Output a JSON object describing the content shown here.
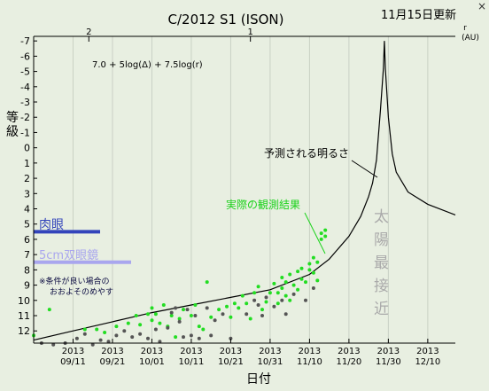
{
  "window": {
    "update_label": "11月15日更新",
    "close_glyph": "×",
    "close_icon": "close-icon"
  },
  "chart_data": {
    "type": "scatter",
    "title": "C/2012 S1 (ISON)",
    "ylabel": "等級",
    "xlabel": "日付",
    "formula": "7.0 + 5log(Δ) + 7.5log(r)",
    "x_ticks": [
      {
        "date": "2013-09-11",
        "year": "2013",
        "label": "09/11"
      },
      {
        "date": "2013-09-21",
        "year": "2013",
        "label": "09/21"
      },
      {
        "date": "2013-10-01",
        "year": "2013",
        "label": "10/01"
      },
      {
        "date": "2013-10-11",
        "year": "2013",
        "label": "10/11"
      },
      {
        "date": "2013-10-21",
        "year": "2013",
        "label": "10/21"
      },
      {
        "date": "2013-10-31",
        "year": "2013",
        "label": "10/31"
      },
      {
        "date": "2013-11-10",
        "year": "2013",
        "label": "11/10"
      },
      {
        "date": "2013-11-20",
        "year": "2013",
        "label": "11/20"
      },
      {
        "date": "2013-11-30",
        "year": "2013",
        "label": "11/30"
      },
      {
        "date": "2013-12-10",
        "year": "2013",
        "label": "12/10"
      }
    ],
    "xlim": [
      "2013-09-01",
      "2013-12-17"
    ],
    "ylim": [
      12.8,
      -7.3
    ],
    "y_ticks": [
      12,
      11,
      10,
      9,
      8,
      7,
      6,
      5,
      4,
      3,
      2,
      1,
      0,
      -1,
      -2,
      -3,
      -4,
      -5,
      -6,
      -7
    ],
    "y_tick_labels": [
      "12",
      "11",
      "10",
      "9",
      "8",
      "7",
      "6",
      "5",
      "4",
      "3",
      "2",
      "1",
      "0",
      "-1",
      "-2",
      "-3",
      "-4",
      "-5",
      "-6",
      "-7"
    ],
    "top_axis": {
      "label": "r",
      "unit": "(AU)",
      "ticks": [
        {
          "date": "2013-09-15",
          "label": "2"
        },
        {
          "date": "2013-10-26",
          "label": "1"
        }
      ]
    },
    "annotations": {
      "predicted_label": "予測される明るさ",
      "observed_label": "実際の観測結果",
      "perihelion_label": [
        "太",
        "陽",
        "最",
        "接",
        "近"
      ],
      "naked_eye_label": "肉眼",
      "naked_eye_mag": 5.5,
      "binocular_label": "5cm双眼鏡",
      "binocular_mag": 7.5,
      "note_lines": [
        "※条件が良い場合の",
        "おおよそのめやす"
      ]
    },
    "colors": {
      "background": "#e8efe1",
      "predicted": "#000000",
      "observed_green": "#22dd22",
      "observed_gray": "#555555",
      "naked_eye": "#3344bb",
      "binocular": "#a9a6ee",
      "perihelion_text": "#aaaaaa"
    },
    "predicted_curve": [
      [
        "2013-09-01",
        12.6
      ],
      [
        "2013-09-11",
        12.0
      ],
      [
        "2013-09-21",
        11.4
      ],
      [
        "2013-10-01",
        10.8
      ],
      [
        "2013-10-11",
        10.3
      ],
      [
        "2013-10-21",
        9.8
      ],
      [
        "2013-10-31",
        9.3
      ],
      [
        "2013-11-10",
        8.3
      ],
      [
        "2013-11-15",
        7.3
      ],
      [
        "2013-11-20",
        5.8
      ],
      [
        "2013-11-23",
        4.5
      ],
      [
        "2013-11-25",
        3.2
      ],
      [
        "2013-11-26",
        2.3
      ],
      [
        "2013-11-27",
        0.8
      ],
      [
        "2013-11-28",
        -2.5
      ],
      [
        "2013-11-28T18:00",
        -5.2
      ],
      [
        "2013-11-29",
        -7.0
      ],
      [
        "2013-11-29T06:00",
        -5.2
      ],
      [
        "2013-11-30",
        -2.0
      ],
      [
        "2013-12-01",
        0.4
      ],
      [
        "2013-12-02",
        1.6
      ],
      [
        "2013-12-05",
        2.9
      ],
      [
        "2013-12-10",
        3.7
      ],
      [
        "2013-12-17",
        4.4
      ]
    ],
    "series": [
      {
        "name": "green",
        "color": "#22dd22",
        "points": [
          [
            "2013-09-01",
            12.3
          ],
          [
            "2013-09-05",
            10.6
          ],
          [
            "2013-09-14",
            11.9
          ],
          [
            "2013-09-17",
            11.9
          ],
          [
            "2013-09-19",
            12.1
          ],
          [
            "2013-09-22",
            11.7
          ],
          [
            "2013-09-25",
            11.5
          ],
          [
            "2013-09-27",
            11.0
          ],
          [
            "2013-09-28",
            11.6
          ],
          [
            "2013-09-30",
            10.9
          ],
          [
            "2013-10-01",
            10.5
          ],
          [
            "2013-10-01",
            11.3
          ],
          [
            "2013-10-02",
            10.9
          ],
          [
            "2013-10-03",
            11.5
          ],
          [
            "2013-10-04",
            10.3
          ],
          [
            "2013-10-05",
            11.7
          ],
          [
            "2013-10-06",
            11.0
          ],
          [
            "2013-10-07",
            12.4
          ],
          [
            "2013-10-08",
            11.2
          ],
          [
            "2013-10-09",
            10.6
          ],
          [
            "2013-10-11",
            11.0
          ],
          [
            "2013-10-12",
            10.3
          ],
          [
            "2013-10-13",
            11.7
          ],
          [
            "2013-10-14",
            11.9
          ],
          [
            "2013-10-15",
            8.8
          ],
          [
            "2013-10-16",
            11.1
          ],
          [
            "2013-10-18",
            10.6
          ],
          [
            "2013-10-20",
            10.4
          ],
          [
            "2013-10-21",
            11.1
          ],
          [
            "2013-10-22",
            10.2
          ],
          [
            "2013-10-23",
            10.5
          ],
          [
            "2013-10-24",
            9.7
          ],
          [
            "2013-10-25",
            10.2
          ],
          [
            "2013-10-26",
            11.2
          ],
          [
            "2013-10-27",
            9.5
          ],
          [
            "2013-10-28",
            9.1
          ],
          [
            "2013-10-29",
            10.6
          ],
          [
            "2013-10-30",
            10.1
          ],
          [
            "2013-10-31",
            9.5
          ],
          [
            "2013-11-01",
            8.9
          ],
          [
            "2013-11-02",
            9.5
          ],
          [
            "2013-11-02",
            10.2
          ],
          [
            "2013-11-03",
            8.5
          ],
          [
            "2013-11-03",
            9.2
          ],
          [
            "2013-11-04",
            9.7
          ],
          [
            "2013-11-04",
            8.8
          ],
          [
            "2013-11-05",
            10.0
          ],
          [
            "2013-11-05",
            8.3
          ],
          [
            "2013-11-06",
            9.0
          ],
          [
            "2013-11-07",
            8.1
          ],
          [
            "2013-11-07",
            9.3
          ],
          [
            "2013-11-08",
            8.6
          ],
          [
            "2013-11-08",
            7.9
          ],
          [
            "2013-11-09",
            8.8
          ],
          [
            "2013-11-10",
            8.0
          ],
          [
            "2013-11-10",
            7.6
          ],
          [
            "2013-11-11",
            8.2
          ],
          [
            "2013-11-11",
            7.2
          ],
          [
            "2013-11-12",
            8.7
          ],
          [
            "2013-11-12",
            7.5
          ],
          [
            "2013-11-13",
            6.0
          ],
          [
            "2013-11-13",
            5.6
          ],
          [
            "2013-11-14",
            5.4
          ],
          [
            "2013-11-14",
            5.8
          ]
        ]
      },
      {
        "name": "gray",
        "color": "#555555",
        "points": [
          [
            "2013-09-03",
            12.8
          ],
          [
            "2013-09-06",
            12.9
          ],
          [
            "2013-09-09",
            12.8
          ],
          [
            "2013-09-12",
            12.5
          ],
          [
            "2013-09-14",
            12.2
          ],
          [
            "2013-09-16",
            12.9
          ],
          [
            "2013-09-18",
            12.6
          ],
          [
            "2013-09-20",
            12.7
          ],
          [
            "2013-09-22",
            12.3
          ],
          [
            "2013-09-24",
            12.0
          ],
          [
            "2013-09-26",
            12.4
          ],
          [
            "2013-09-28",
            12.2
          ],
          [
            "2013-09-30",
            12.5
          ],
          [
            "2013-10-02",
            11.9
          ],
          [
            "2013-10-03",
            12.7
          ],
          [
            "2013-10-05",
            11.8
          ],
          [
            "2013-10-06",
            10.8
          ],
          [
            "2013-10-07",
            10.5
          ],
          [
            "2013-10-08",
            11.4
          ],
          [
            "2013-10-09",
            12.4
          ],
          [
            "2013-10-10",
            10.6
          ],
          [
            "2013-10-11",
            12.3
          ],
          [
            "2013-10-12",
            11.0
          ],
          [
            "2013-10-13",
            12.5
          ],
          [
            "2013-10-15",
            10.5
          ],
          [
            "2013-10-16",
            12.3
          ],
          [
            "2013-10-17",
            11.3
          ],
          [
            "2013-10-19",
            10.9
          ],
          [
            "2013-10-21",
            12.5
          ],
          [
            "2013-10-25",
            10.9
          ],
          [
            "2013-10-27",
            10.0
          ],
          [
            "2013-10-28",
            10.3
          ],
          [
            "2013-10-29",
            11.0
          ],
          [
            "2013-10-30",
            9.8
          ],
          [
            "2013-11-01",
            10.4
          ],
          [
            "2013-11-03",
            10.0
          ],
          [
            "2013-11-04",
            10.9
          ],
          [
            "2013-11-06",
            9.6
          ],
          [
            "2013-11-09",
            10.0
          ],
          [
            "2013-11-11",
            9.2
          ]
        ]
      }
    ]
  }
}
